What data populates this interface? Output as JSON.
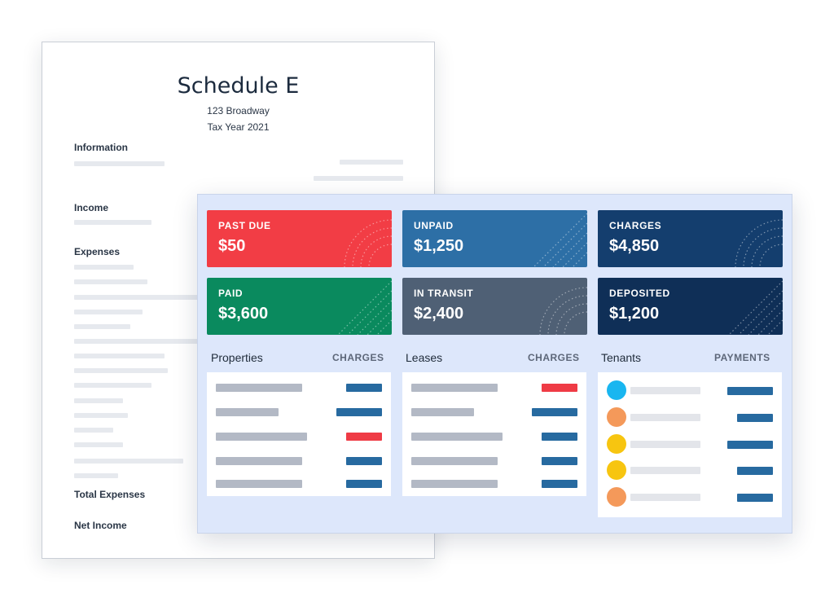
{
  "document": {
    "title": "Schedule E",
    "address": "123 Broadway",
    "tax_year": "Tax Year 2021",
    "sections": {
      "information": "Information",
      "income": "Income",
      "expenses": "Expenses",
      "total_expenses": "Total Expenses",
      "net_income": "Net Income"
    }
  },
  "cards": [
    {
      "label": "PAST DUE",
      "value": "$50",
      "color": "#f23d45"
    },
    {
      "label": "UNPAID",
      "value": "$1,250",
      "color": "#2d6fa6"
    },
    {
      "label": "CHARGES",
      "value": "$4,850",
      "color": "#143e6e"
    },
    {
      "label": "PAID",
      "value": "$3,600",
      "color": "#0a8a5e"
    },
    {
      "label": "IN TRANSIT",
      "value": "$2,400",
      "color": "#4f6075"
    },
    {
      "label": "DEPOSITED",
      "value": "$1,200",
      "color": "#0f2f57"
    }
  ],
  "sections": {
    "properties": {
      "title": "Properties",
      "column": "CHARGES"
    },
    "leases": {
      "title": "Leases",
      "column": "CHARGES"
    },
    "tenants": {
      "title": "Tenants",
      "column": "PAYMENTS"
    }
  },
  "colors": {
    "status_blue": "#276aa0",
    "status_red": "#ef3b45",
    "avatar_cyan": "#19b6f0",
    "avatar_orange": "#f4995a",
    "avatar_yellow": "#f7c510"
  }
}
